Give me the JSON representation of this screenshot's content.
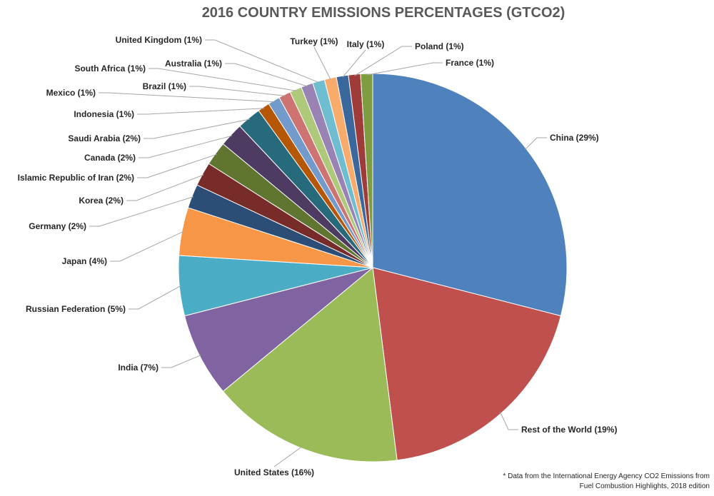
{
  "chart_data": {
    "type": "pie",
    "title": "2016 COUNTRY EMISSIONS PERCENTAGES (GTCO2)",
    "legend": "none",
    "start_angle_deg": 0,
    "direction": "clockwise",
    "slices": [
      {
        "label": "China (29%)",
        "value": 29,
        "color": "#4F81BD"
      },
      {
        "label": "Rest of the World (19%)",
        "value": 19,
        "color": "#C0504D"
      },
      {
        "label": "United States (16%)",
        "value": 16,
        "color": "#9BBB59"
      },
      {
        "label": "India (7%)",
        "value": 7,
        "color": "#8064A2"
      },
      {
        "label": "Russian Federation (5%)",
        "value": 5,
        "color": "#4BACC6"
      },
      {
        "label": "Japan (4%)",
        "value": 4,
        "color": "#F79646"
      },
      {
        "label": "Germany (2%)",
        "value": 2,
        "color": "#2C4D75"
      },
      {
        "label": "Korea (2%)",
        "value": 2,
        "color": "#772C2A"
      },
      {
        "label": "Islamic Republic of Iran (2%)",
        "value": 2,
        "color": "#5F7530"
      },
      {
        "label": "Canada (2%)",
        "value": 2,
        "color": "#4D3B62"
      },
      {
        "label": "Saudi Arabia (2%)",
        "value": 2,
        "color": "#276A7C"
      },
      {
        "label": "Indonesia (1%)",
        "value": 1,
        "color": "#B65708"
      },
      {
        "label": "Mexico (1%)",
        "value": 1,
        "color": "#729ACA"
      },
      {
        "label": "Brazil (1%)",
        "value": 1,
        "color": "#CD7371"
      },
      {
        "label": "South Africa (1%)",
        "value": 1,
        "color": "#AFC97A"
      },
      {
        "label": "Australia (1%)",
        "value": 1,
        "color": "#9983B5"
      },
      {
        "label": "United Kingdom (1%)",
        "value": 1,
        "color": "#6FBDD1"
      },
      {
        "label": "Turkey (1%)",
        "value": 1,
        "color": "#F9AB6B"
      },
      {
        "label": "Italy (1%)",
        "value": 1,
        "color": "#3A679C"
      },
      {
        "label": "Poland (1%)",
        "value": 1,
        "color": "#9F3B38"
      },
      {
        "label": "France (1%)",
        "value": 1,
        "color": "#7F9D40"
      }
    ]
  },
  "footnote": {
    "line1": "* Data from the International Energy Agency CO2 Emissions from",
    "line2": "Fuel Combustion Highlights, 2018 edition"
  }
}
